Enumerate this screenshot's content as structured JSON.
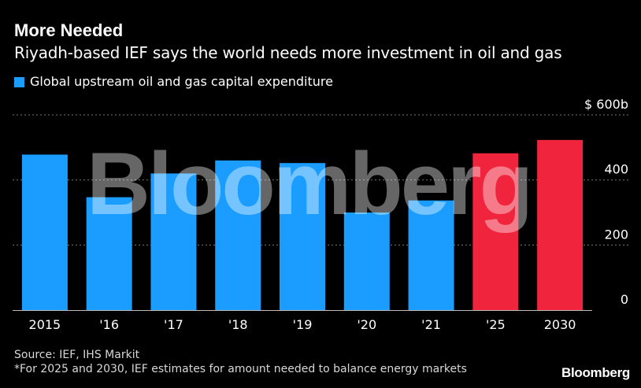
{
  "header": {
    "title": "More Needed",
    "subtitle": "Riyadh-based IEF says the world needs more investment in oil and gas"
  },
  "legend": {
    "label": "Global upstream oil and gas capital expenditure",
    "color": "#1a9dff"
  },
  "colors": {
    "actual": "#1a9dff",
    "estimate": "#f0243c",
    "background": "#000000",
    "grid": "#777777"
  },
  "chart_data": {
    "type": "bar",
    "title": "More Needed",
    "subtitle": "Riyadh-based IEF says the world needs more investment in oil and gas",
    "categories": [
      "2015",
      "'16",
      "'17",
      "'18",
      "'19",
      "'20",
      "'21",
      "'25",
      "2030"
    ],
    "values": [
      478,
      347,
      420,
      460,
      452,
      300,
      337,
      482,
      523
    ],
    "estimate_flags": [
      false,
      false,
      false,
      false,
      false,
      false,
      false,
      true,
      true
    ],
    "yticks": [
      0,
      200,
      400,
      600
    ],
    "ytick_labels": [
      "0",
      "200",
      "400",
      "$ 600b"
    ],
    "ylim": [
      0,
      600
    ],
    "xlabel": "",
    "ylabel": "",
    "grid": true,
    "legend": [
      "Global upstream oil and gas capital expenditure"
    ]
  },
  "watermark": "Bloomberg",
  "footer": {
    "source": "Source: IEF, IHS Markit",
    "note": "*For 2025 and 2030, IEF estimates for amount needed to balance energy markets",
    "logo": "Bloomberg"
  }
}
